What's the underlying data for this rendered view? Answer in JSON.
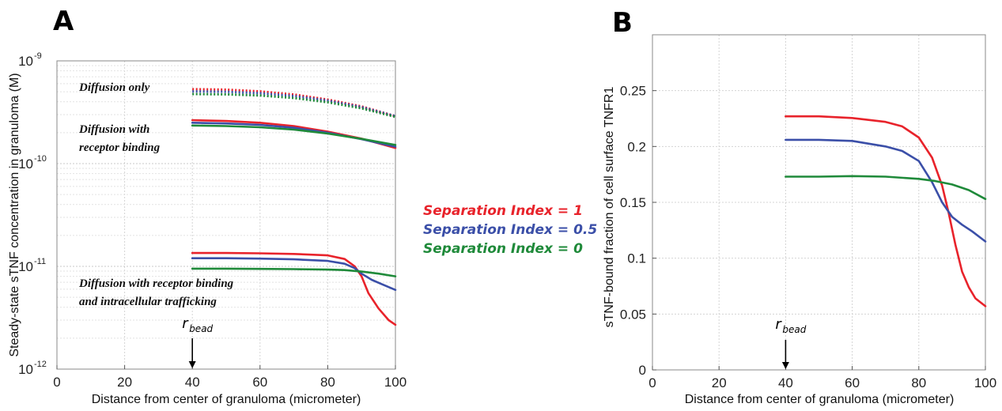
{
  "chart_data": [
    {
      "panel": "A",
      "type": "line",
      "ylabel": "Steady-state sTNF concentration in granuloma (M)",
      "xlabel": "Distance from center of granuloma (micrometer)",
      "xlim": [
        0,
        100
      ],
      "ylim": [
        1e-12,
        1e-09
      ],
      "yscale": "log",
      "xticks": [
        "0",
        "20",
        "40",
        "60",
        "80",
        "100"
      ],
      "yticks": [
        {
          "base": "10",
          "exp": "-12"
        },
        {
          "base": "10",
          "exp": "-11"
        },
        {
          "base": "10",
          "exp": "-10"
        },
        {
          "base": "10",
          "exp": "-9"
        }
      ],
      "grid": true,
      "annotations": [
        {
          "lines": [
            "Diffusion only"
          ]
        },
        {
          "lines": [
            "Diffusion with",
            "receptor binding"
          ]
        },
        {
          "lines": [
            "Diffusion with receptor binding",
            "and intracellular trafficking"
          ]
        }
      ],
      "marker": {
        "label": "r",
        "sub": "bead",
        "x": 40
      },
      "groups": [
        {
          "dashed": true,
          "series": [
            {
              "color": "#e8232b",
              "points": [
                [
                  40,
                  5.3e-10
                ],
                [
                  50,
                  5.25e-10
                ],
                [
                  60,
                  5.05e-10
                ],
                [
                  70,
                  4.7e-10
                ],
                [
                  80,
                  4.2e-10
                ],
                [
                  90,
                  3.6e-10
                ],
                [
                  100,
                  2.9e-10
                ]
              ]
            },
            {
              "color": "#3b4fa8",
              "points": [
                [
                  40,
                  5.05e-10
                ],
                [
                  50,
                  5e-10
                ],
                [
                  60,
                  4.85e-10
                ],
                [
                  70,
                  4.55e-10
                ],
                [
                  80,
                  4.1e-10
                ],
                [
                  90,
                  3.55e-10
                ],
                [
                  100,
                  2.9e-10
                ]
              ]
            },
            {
              "color": "#1f8a3a",
              "points": [
                [
                  40,
                  4.75e-10
                ],
                [
                  50,
                  4.72e-10
                ],
                [
                  60,
                  4.6e-10
                ],
                [
                  70,
                  4.35e-10
                ],
                [
                  80,
                  3.95e-10
                ],
                [
                  90,
                  3.45e-10
                ],
                [
                  100,
                  2.85e-10
                ]
              ]
            }
          ]
        },
        {
          "dashed": false,
          "series": [
            {
              "color": "#e8232b",
              "points": [
                [
                  40,
                  2.65e-10
                ],
                [
                  50,
                  2.6e-10
                ],
                [
                  60,
                  2.5e-10
                ],
                [
                  70,
                  2.32e-10
                ],
                [
                  80,
                  2.05e-10
                ],
                [
                  90,
                  1.75e-10
                ],
                [
                  100,
                  1.42e-10
                ]
              ]
            },
            {
              "color": "#3b4fa8",
              "points": [
                [
                  40,
                  2.5e-10
                ],
                [
                  50,
                  2.46e-10
                ],
                [
                  60,
                  2.38e-10
                ],
                [
                  70,
                  2.23e-10
                ],
                [
                  80,
                  2e-10
                ],
                [
                  90,
                  1.73e-10
                ],
                [
                  100,
                  1.46e-10
                ]
              ]
            },
            {
              "color": "#1f8a3a",
              "points": [
                [
                  40,
                  2.35e-10
                ],
                [
                  50,
                  2.32e-10
                ],
                [
                  60,
                  2.26e-10
                ],
                [
                  70,
                  2.14e-10
                ],
                [
                  80,
                  1.96e-10
                ],
                [
                  90,
                  1.74e-10
                ],
                [
                  100,
                  1.52e-10
                ]
              ]
            }
          ]
        },
        {
          "dashed": false,
          "series": [
            {
              "color": "#e8232b",
              "points": [
                [
                  40,
                  1.35e-11
                ],
                [
                  50,
                  1.35e-11
                ],
                [
                  60,
                  1.34e-11
                ],
                [
                  70,
                  1.32e-11
                ],
                [
                  80,
                  1.28e-11
                ],
                [
                  85,
                  1.18e-11
                ],
                [
                  88,
                  1e-11
                ],
                [
                  90,
                  8e-12
                ],
                [
                  92,
                  5.5e-12
                ],
                [
                  95,
                  3.9e-12
                ],
                [
                  98,
                  3e-12
                ],
                [
                  100,
                  2.7e-12
                ]
              ]
            },
            {
              "color": "#3b4fa8",
              "points": [
                [
                  40,
                  1.2e-11
                ],
                [
                  50,
                  1.2e-11
                ],
                [
                  60,
                  1.19e-11
                ],
                [
                  70,
                  1.17e-11
                ],
                [
                  80,
                  1.13e-11
                ],
                [
                  85,
                  1.06e-11
                ],
                [
                  88,
                  9.6e-12
                ],
                [
                  90,
                  8.5e-12
                ],
                [
                  93,
                  7.4e-12
                ],
                [
                  96,
                  6.7e-12
                ],
                [
                  100,
                  5.9e-12
                ]
              ]
            },
            {
              "color": "#1f8a3a",
              "points": [
                [
                  40,
                  9.5e-12
                ],
                [
                  50,
                  9.5e-12
                ],
                [
                  60,
                  9.45e-12
                ],
                [
                  70,
                  9.4e-12
                ],
                [
                  80,
                  9.3e-12
                ],
                [
                  85,
                  9.2e-12
                ],
                [
                  90,
                  8.9e-12
                ],
                [
                  95,
                  8.5e-12
                ],
                [
                  100,
                  8e-12
                ]
              ]
            }
          ]
        }
      ]
    },
    {
      "panel": "B",
      "type": "line",
      "ylabel": "sTNF-bound fraction of cell surface TNFR1",
      "xlabel": "Distance from center of granuloma (micrometer)",
      "xlim": [
        0,
        100
      ],
      "ylim": [
        0,
        0.3
      ],
      "yscale": "linear",
      "xticks": [
        "0",
        "20",
        "40",
        "60",
        "80",
        "100"
      ],
      "yticks": [
        "0",
        "0.05",
        "0.1",
        "0.15",
        "0.2",
        "0.25"
      ],
      "grid": true,
      "marker": {
        "label": "r",
        "sub": "bead",
        "x": 40
      },
      "series": [
        {
          "color": "#e8232b",
          "points": [
            [
              40,
              0.227
            ],
            [
              50,
              0.227
            ],
            [
              60,
              0.2255
            ],
            [
              70,
              0.222
            ],
            [
              75,
              0.218
            ],
            [
              80,
              0.208
            ],
            [
              84,
              0.19
            ],
            [
              87,
              0.165
            ],
            [
              89,
              0.14
            ],
            [
              91,
              0.112
            ],
            [
              93,
              0.088
            ],
            [
              95,
              0.074
            ],
            [
              97,
              0.064
            ],
            [
              100,
              0.057
            ]
          ]
        },
        {
          "color": "#3b4fa8",
          "points": [
            [
              40,
              0.206
            ],
            [
              50,
              0.206
            ],
            [
              60,
              0.205
            ],
            [
              70,
              0.2
            ],
            [
              75,
              0.196
            ],
            [
              80,
              0.187
            ],
            [
              84,
              0.168
            ],
            [
              87,
              0.15
            ],
            [
              90,
              0.137
            ],
            [
              93,
              0.13
            ],
            [
              96,
              0.124
            ],
            [
              100,
              0.115
            ]
          ]
        },
        {
          "color": "#1f8a3a",
          "points": [
            [
              40,
              0.173
            ],
            [
              50,
              0.173
            ],
            [
              60,
              0.1735
            ],
            [
              70,
              0.173
            ],
            [
              80,
              0.171
            ],
            [
              85,
              0.169
            ],
            [
              90,
              0.166
            ],
            [
              95,
              0.161
            ],
            [
              100,
              0.153
            ]
          ]
        }
      ]
    }
  ],
  "figure": {
    "panel_labels": [
      "A",
      "B"
    ],
    "legend": [
      {
        "label": "Separation Index = 1",
        "color": "#e8232b"
      },
      {
        "label": "Separation Index = 0.5",
        "color": "#3b4fa8"
      },
      {
        "label": "Separation Index = 0",
        "color": "#1f8a3a"
      }
    ]
  }
}
